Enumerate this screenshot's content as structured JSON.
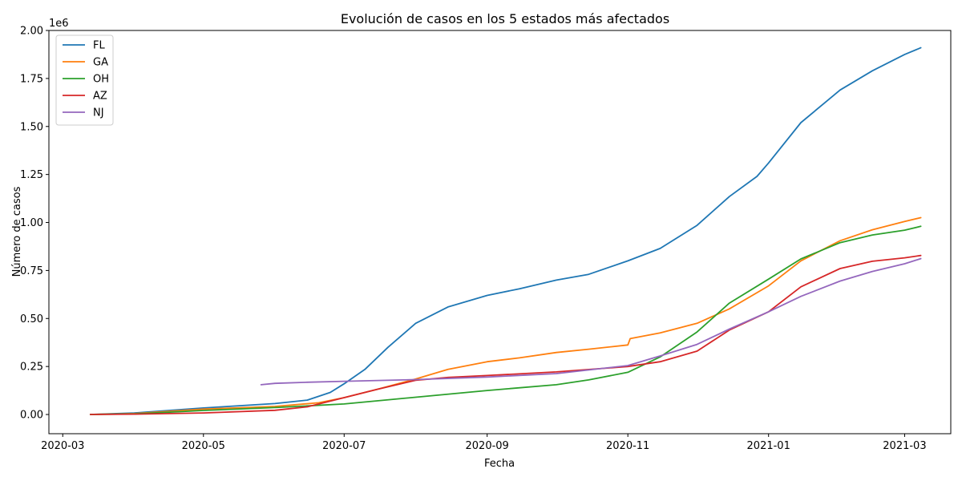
{
  "chart_data": {
    "type": "line",
    "title": "Evolución de casos en los 5 estados más afectados",
    "xlabel": "Fecha",
    "ylabel": "Número de casos",
    "y_offset_label": "1e6",
    "xlim": [
      "2020-02-24",
      "2021-03-21"
    ],
    "ylim": [
      -0.1,
      2.0
    ],
    "x_ticks": [
      "2020-03-01",
      "2020-05-01",
      "2020-07-01",
      "2020-09-01",
      "2020-11-01",
      "2021-01-01",
      "2021-03-01"
    ],
    "x_tick_labels": [
      "2020-03",
      "2020-05",
      "2020-07",
      "2020-09",
      "2020-11",
      "2021-01",
      "2021-03"
    ],
    "y_ticks": [
      0.0,
      0.25,
      0.5,
      0.75,
      1.0,
      1.25,
      1.5,
      1.75,
      2.0
    ],
    "y_tick_labels": [
      "0.00",
      "0.25",
      "0.50",
      "0.75",
      "1.00",
      "1.25",
      "1.50",
      "1.75",
      "2.00"
    ],
    "grid": false,
    "legend": "top-left",
    "series": [
      {
        "name": "FL",
        "color": "#1f77b4",
        "points": [
          [
            "2020-03-13",
            0.0
          ],
          [
            "2020-04-01",
            0.008
          ],
          [
            "2020-05-01",
            0.034
          ],
          [
            "2020-06-01",
            0.057
          ],
          [
            "2020-06-15",
            0.075
          ],
          [
            "2020-06-25",
            0.115
          ],
          [
            "2020-07-01",
            0.16
          ],
          [
            "2020-07-10",
            0.235
          ],
          [
            "2020-07-20",
            0.35
          ],
          [
            "2020-08-01",
            0.475
          ],
          [
            "2020-08-15",
            0.56
          ],
          [
            "2020-09-01",
            0.62
          ],
          [
            "2020-09-15",
            0.655
          ],
          [
            "2020-10-01",
            0.7
          ],
          [
            "2020-10-15",
            0.73
          ],
          [
            "2020-11-01",
            0.8
          ],
          [
            "2020-11-15",
            0.865
          ],
          [
            "2020-12-01",
            0.985
          ],
          [
            "2020-12-15",
            1.135
          ],
          [
            "2020-12-27",
            1.24
          ],
          [
            "2021-01-01",
            1.31
          ],
          [
            "2021-01-15",
            1.52
          ],
          [
            "2021-02-01",
            1.69
          ],
          [
            "2021-02-15",
            1.79
          ],
          [
            "2021-03-01",
            1.875
          ],
          [
            "2021-03-08",
            1.91
          ]
        ]
      },
      {
        "name": "GA",
        "color": "#ff7f0e",
        "points": [
          [
            "2020-03-13",
            0.0
          ],
          [
            "2020-04-01",
            0.005
          ],
          [
            "2020-05-01",
            0.028
          ],
          [
            "2020-06-01",
            0.042
          ],
          [
            "2020-06-20",
            0.061
          ],
          [
            "2020-07-01",
            0.088
          ],
          [
            "2020-07-15",
            0.13
          ],
          [
            "2020-08-01",
            0.185
          ],
          [
            "2020-08-15",
            0.235
          ],
          [
            "2020-09-01",
            0.275
          ],
          [
            "2020-09-15",
            0.295
          ],
          [
            "2020-10-01",
            0.323
          ],
          [
            "2020-10-15",
            0.34
          ],
          [
            "2020-11-01",
            0.362
          ],
          [
            "2020-11-02",
            0.395
          ],
          [
            "2020-11-15",
            0.425
          ],
          [
            "2020-12-01",
            0.475
          ],
          [
            "2020-12-15",
            0.55
          ],
          [
            "2021-01-01",
            0.67
          ],
          [
            "2021-01-15",
            0.8
          ],
          [
            "2021-02-01",
            0.905
          ],
          [
            "2021-02-15",
            0.962
          ],
          [
            "2021-03-01",
            1.005
          ],
          [
            "2021-03-08",
            1.025
          ]
        ]
      },
      {
        "name": "OH",
        "color": "#2ca02c",
        "points": [
          [
            "2020-03-13",
            0.0
          ],
          [
            "2020-04-01",
            0.003
          ],
          [
            "2020-05-01",
            0.021
          ],
          [
            "2020-06-01",
            0.036
          ],
          [
            "2020-07-01",
            0.055
          ],
          [
            "2020-08-01",
            0.09
          ],
          [
            "2020-09-01",
            0.125
          ],
          [
            "2020-10-01",
            0.155
          ],
          [
            "2020-10-15",
            0.18
          ],
          [
            "2020-11-01",
            0.22
          ],
          [
            "2020-11-15",
            0.3
          ],
          [
            "2020-12-01",
            0.43
          ],
          [
            "2020-12-15",
            0.58
          ],
          [
            "2021-01-01",
            0.705
          ],
          [
            "2021-01-15",
            0.81
          ],
          [
            "2021-02-01",
            0.895
          ],
          [
            "2021-02-15",
            0.935
          ],
          [
            "2021-03-01",
            0.96
          ],
          [
            "2021-03-08",
            0.98
          ]
        ]
      },
      {
        "name": "AZ",
        "color": "#d62728",
        "points": [
          [
            "2020-03-13",
            0.0
          ],
          [
            "2020-04-01",
            0.002
          ],
          [
            "2020-05-01",
            0.008
          ],
          [
            "2020-06-01",
            0.022
          ],
          [
            "2020-06-15",
            0.04
          ],
          [
            "2020-07-01",
            0.088
          ],
          [
            "2020-07-15",
            0.13
          ],
          [
            "2020-08-01",
            0.178
          ],
          [
            "2020-08-15",
            0.193
          ],
          [
            "2020-09-01",
            0.203
          ],
          [
            "2020-10-01",
            0.222
          ],
          [
            "2020-11-01",
            0.25
          ],
          [
            "2020-11-15",
            0.275
          ],
          [
            "2020-12-01",
            0.33
          ],
          [
            "2020-12-15",
            0.44
          ],
          [
            "2021-01-01",
            0.535
          ],
          [
            "2021-01-15",
            0.665
          ],
          [
            "2021-02-01",
            0.76
          ],
          [
            "2021-02-15",
            0.798
          ],
          [
            "2021-03-01",
            0.816
          ],
          [
            "2021-03-08",
            0.828
          ]
        ]
      },
      {
        "name": "NJ",
        "color": "#9467bd",
        "points": [
          [
            "2020-05-26",
            0.155
          ],
          [
            "2020-06-01",
            0.162
          ],
          [
            "2020-06-15",
            0.168
          ],
          [
            "2020-07-01",
            0.173
          ],
          [
            "2020-08-01",
            0.182
          ],
          [
            "2020-09-01",
            0.195
          ],
          [
            "2020-10-01",
            0.213
          ],
          [
            "2020-11-01",
            0.255
          ],
          [
            "2020-11-15",
            0.305
          ],
          [
            "2020-12-01",
            0.365
          ],
          [
            "2020-12-15",
            0.445
          ],
          [
            "2021-01-01",
            0.535
          ],
          [
            "2021-01-15",
            0.615
          ],
          [
            "2021-02-01",
            0.695
          ],
          [
            "2021-02-15",
            0.745
          ],
          [
            "2021-03-01",
            0.785
          ],
          [
            "2021-03-08",
            0.812
          ]
        ]
      }
    ]
  }
}
